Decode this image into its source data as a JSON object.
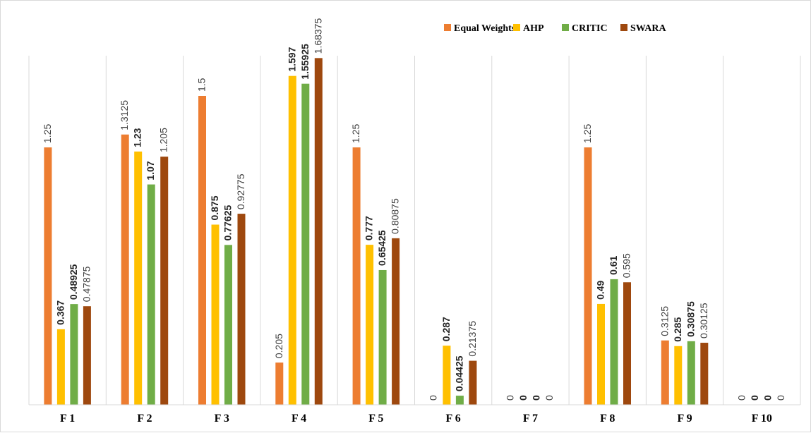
{
  "chart_data": {
    "type": "bar",
    "title": "",
    "xlabel": "",
    "ylabel": "",
    "ylim": [
      0,
      1.75
    ],
    "legend_position": "top-right",
    "grid": "vertical category separators",
    "categories": [
      "F 1",
      "F 2",
      "F 3",
      "F 4",
      "F 5",
      "F 6",
      "F 7",
      "F 8",
      "F 9",
      "F 10"
    ],
    "series": [
      {
        "name": "Equal Weights",
        "color": "#ED7D31",
        "values": [
          1.25,
          1.3125,
          1.5,
          0.205,
          1.25,
          0,
          0,
          1.25,
          0.3125,
          0
        ],
        "labels": [
          "1.25",
          "1.3125",
          "1.5",
          "0.205",
          "1.25",
          "0",
          "0",
          "1.25",
          "0.3125",
          "0"
        ],
        "bold_labels": false
      },
      {
        "name": "AHP",
        "color": "#FFC000",
        "values": [
          0.367,
          1.23,
          0.875,
          1.597,
          0.777,
          0.287,
          0,
          0.49,
          0.285,
          0
        ],
        "labels": [
          "0.367",
          "1.23",
          "0.875",
          "1.597",
          "0.777",
          "0.287",
          "0",
          "0.49",
          "0.285",
          "0"
        ],
        "bold_labels": true
      },
      {
        "name": "CRITIC",
        "color": "#70AD47",
        "values": [
          0.48925,
          1.07,
          0.77625,
          1.55925,
          0.65425,
          0.04425,
          0,
          0.61,
          0.30875,
          0
        ],
        "labels": [
          "0.48925",
          "1.07",
          "0.77625",
          "1.55925",
          "0.65425",
          "0.04425",
          "0",
          "0.61",
          "0.30875",
          "0"
        ],
        "bold_labels": true
      },
      {
        "name": "SWARA",
        "color": "#9E480E",
        "values": [
          0.47875,
          1.205,
          0.92775,
          1.68375,
          0.80875,
          0.21375,
          0,
          0.595,
          0.30125,
          0
        ],
        "labels": [
          "0.47875",
          "1.205",
          "0.92775",
          "1.68375",
          "0.80875",
          "0.21375",
          "0",
          "0.595",
          "0.30125",
          "0"
        ],
        "bold_labels": false
      }
    ]
  }
}
